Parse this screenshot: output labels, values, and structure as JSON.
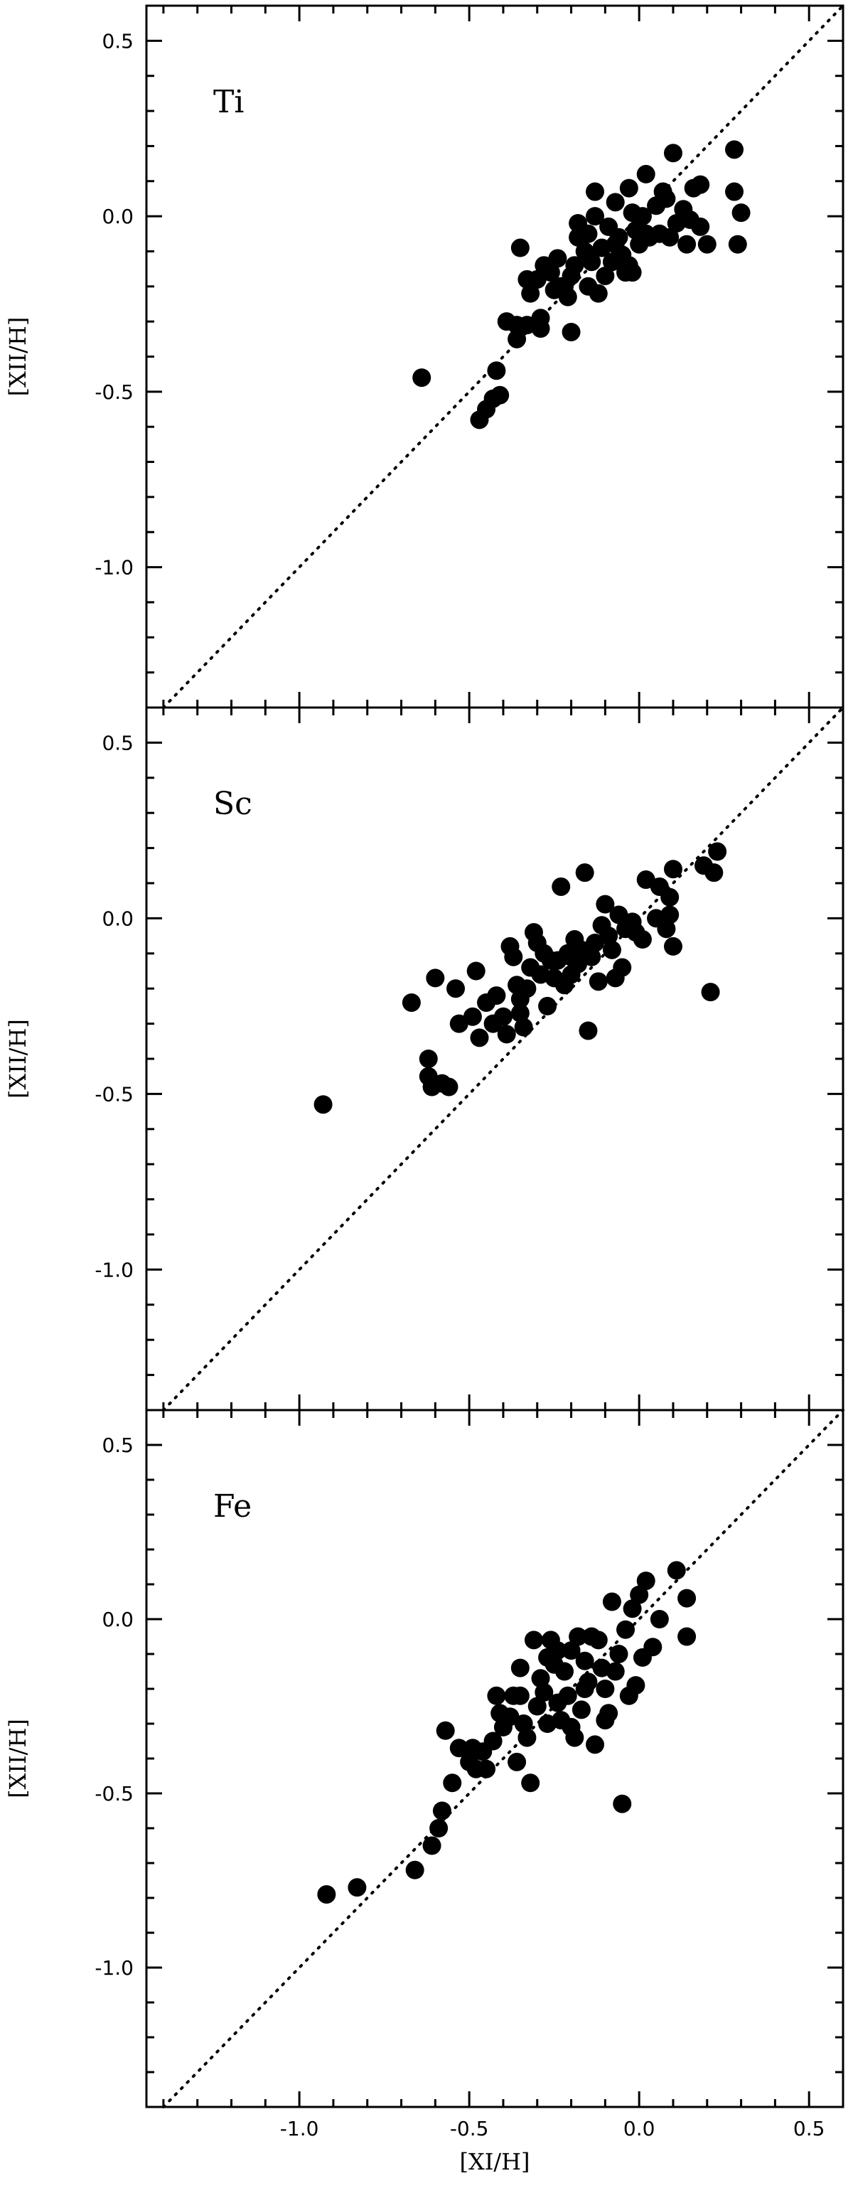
{
  "chart_data": [
    {
      "type": "scatter",
      "label": "Ti",
      "ylabel": "[XII/H]",
      "xlim": [
        -1.45,
        0.6
      ],
      "ylim": [
        -1.4,
        0.6
      ],
      "x_ticks": [
        "-1.0",
        "-0.5",
        "0.0",
        "0.5"
      ],
      "y_ticks": [
        "0.5",
        "0.0",
        "-0.5",
        "-1.0"
      ],
      "reference_line": "y = x (dotted)",
      "points": [
        [
          -0.64,
          -0.46
        ],
        [
          -0.47,
          -0.58
        ],
        [
          -0.45,
          -0.55
        ],
        [
          -0.43,
          -0.52
        ],
        [
          -0.41,
          -0.51
        ],
        [
          -0.42,
          -0.44
        ],
        [
          -0.39,
          -0.3
        ],
        [
          -0.36,
          -0.31
        ],
        [
          -0.36,
          -0.35
        ],
        [
          -0.33,
          -0.31
        ],
        [
          -0.35,
          -0.09
        ],
        [
          -0.33,
          -0.18
        ],
        [
          -0.32,
          -0.22
        ],
        [
          -0.29,
          -0.29
        ],
        [
          -0.29,
          -0.32
        ],
        [
          -0.3,
          -0.18
        ],
        [
          -0.28,
          -0.14
        ],
        [
          -0.26,
          -0.16
        ],
        [
          -0.25,
          -0.21
        ],
        [
          -0.24,
          -0.12
        ],
        [
          -0.22,
          -0.2
        ],
        [
          -0.21,
          -0.23
        ],
        [
          -0.2,
          -0.17
        ],
        [
          -0.2,
          -0.33
        ],
        [
          -0.19,
          -0.14
        ],
        [
          -0.18,
          -0.06
        ],
        [
          -0.18,
          -0.02
        ],
        [
          -0.16,
          -0.1
        ],
        [
          -0.15,
          -0.2
        ],
        [
          -0.14,
          -0.13
        ],
        [
          -0.13,
          0.07
        ],
        [
          -0.13,
          0.0
        ],
        [
          -0.12,
          -0.22
        ],
        [
          -0.11,
          -0.09
        ],
        [
          -0.1,
          -0.17
        ],
        [
          -0.09,
          -0.03
        ],
        [
          -0.08,
          -0.13
        ],
        [
          -0.07,
          0.04
        ],
        [
          -0.06,
          -0.06
        ],
        [
          -0.05,
          -0.11
        ],
        [
          -0.04,
          -0.16
        ],
        [
          -0.03,
          0.08
        ],
        [
          -0.02,
          0.01
        ],
        [
          -0.01,
          -0.04
        ],
        [
          0.0,
          -0.08
        ],
        [
          0.01,
          0.0
        ],
        [
          -0.03,
          -0.14
        ],
        [
          -0.02,
          -0.16
        ],
        [
          0.02,
          0.12
        ],
        [
          0.03,
          -0.06
        ],
        [
          0.05,
          0.03
        ],
        [
          0.06,
          -0.05
        ],
        [
          0.07,
          0.07
        ],
        [
          0.08,
          0.05
        ],
        [
          0.09,
          -0.06
        ],
        [
          0.1,
          0.18
        ],
        [
          0.11,
          -0.02
        ],
        [
          0.13,
          0.02
        ],
        [
          0.14,
          -0.08
        ],
        [
          0.15,
          -0.01
        ],
        [
          0.16,
          0.08
        ],
        [
          0.18,
          0.09
        ],
        [
          0.18,
          -0.03
        ],
        [
          0.2,
          -0.08
        ],
        [
          0.28,
          0.19
        ],
        [
          0.28,
          0.07
        ],
        [
          0.29,
          -0.08
        ],
        [
          0.3,
          0.01
        ],
        [
          -0.15,
          -0.05
        ],
        [
          -0.07,
          -0.08
        ],
        [
          -0.23,
          -0.2
        ],
        [
          0.02,
          -0.05
        ]
      ]
    },
    {
      "type": "scatter",
      "label": "Sc",
      "ylabel": "[XII/H]",
      "xlim": [
        -1.45,
        0.6
      ],
      "ylim": [
        -1.4,
        0.6
      ],
      "x_ticks": [
        "-1.0",
        "-0.5",
        "0.0",
        "0.5"
      ],
      "y_ticks": [
        "0.5",
        "0.0",
        "-0.5",
        "-1.0"
      ],
      "reference_line": "y = x (dotted)",
      "points": [
        [
          -0.93,
          -0.53
        ],
        [
          -0.67,
          -0.24
        ],
        [
          -0.62,
          -0.4
        ],
        [
          -0.62,
          -0.45
        ],
        [
          -0.61,
          -0.48
        ],
        [
          -0.58,
          -0.47
        ],
        [
          -0.56,
          -0.48
        ],
        [
          -0.6,
          -0.17
        ],
        [
          -0.54,
          -0.2
        ],
        [
          -0.53,
          -0.3
        ],
        [
          -0.49,
          -0.28
        ],
        [
          -0.48,
          -0.15
        ],
        [
          -0.47,
          -0.34
        ],
        [
          -0.45,
          -0.24
        ],
        [
          -0.43,
          -0.3
        ],
        [
          -0.42,
          -0.22
        ],
        [
          -0.4,
          -0.28
        ],
        [
          -0.39,
          -0.33
        ],
        [
          -0.38,
          -0.08
        ],
        [
          -0.37,
          -0.11
        ],
        [
          -0.36,
          -0.19
        ],
        [
          -0.35,
          -0.27
        ],
        [
          -0.34,
          -0.31
        ],
        [
          -0.33,
          -0.2
        ],
        [
          -0.32,
          -0.14
        ],
        [
          -0.31,
          -0.04
        ],
        [
          -0.3,
          -0.07
        ],
        [
          -0.29,
          -0.16
        ],
        [
          -0.28,
          -0.1
        ],
        [
          -0.27,
          -0.25
        ],
        [
          -0.26,
          -0.12
        ],
        [
          -0.25,
          -0.17
        ],
        [
          -0.24,
          -0.12
        ],
        [
          -0.23,
          0.09
        ],
        [
          -0.22,
          -0.19
        ],
        [
          -0.21,
          -0.1
        ],
        [
          -0.2,
          -0.16
        ],
        [
          -0.19,
          -0.06
        ],
        [
          -0.18,
          -0.13
        ],
        [
          -0.17,
          -0.09
        ],
        [
          -0.16,
          0.13
        ],
        [
          -0.15,
          -0.32
        ],
        [
          -0.14,
          -0.11
        ],
        [
          -0.13,
          -0.07
        ],
        [
          -0.12,
          -0.18
        ],
        [
          -0.11,
          -0.02
        ],
        [
          -0.1,
          0.04
        ],
        [
          -0.09,
          -0.05
        ],
        [
          -0.08,
          -0.09
        ],
        [
          -0.07,
          -0.17
        ],
        [
          -0.06,
          0.01
        ],
        [
          -0.05,
          -0.14
        ],
        [
          -0.04,
          -0.03
        ],
        [
          -0.02,
          -0.01
        ],
        [
          -0.01,
          -0.04
        ],
        [
          0.01,
          -0.06
        ],
        [
          0.02,
          0.11
        ],
        [
          0.05,
          0.0
        ],
        [
          0.06,
          0.09
        ],
        [
          0.08,
          -0.03
        ],
        [
          0.09,
          0.06
        ],
        [
          0.09,
          0.01
        ],
        [
          0.1,
          0.14
        ],
        [
          0.1,
          -0.08
        ],
        [
          0.19,
          0.15
        ],
        [
          0.22,
          0.13
        ],
        [
          0.23,
          0.19
        ],
        [
          0.21,
          -0.21
        ],
        [
          -0.35,
          -0.23
        ],
        [
          -0.2,
          -0.11
        ]
      ]
    },
    {
      "type": "scatter",
      "label": "Fe",
      "xlabel": "[XI/H]",
      "ylabel": "[XII/H]",
      "xlim": [
        -1.45,
        0.6
      ],
      "ylim": [
        -1.4,
        0.6
      ],
      "x_ticks": [
        "-1.0",
        "-0.5",
        "0.0",
        "0.5"
      ],
      "y_ticks": [
        "0.5",
        "0.0",
        "-0.5",
        "-1.0"
      ],
      "reference_line": "y = x (dotted)",
      "points": [
        [
          -0.92,
          -0.79
        ],
        [
          -0.83,
          -0.77
        ],
        [
          -0.66,
          -0.72
        ],
        [
          -0.61,
          -0.65
        ],
        [
          -0.59,
          -0.6
        ],
        [
          -0.58,
          -0.55
        ],
        [
          -0.55,
          -0.47
        ],
        [
          -0.57,
          -0.32
        ],
        [
          -0.53,
          -0.37
        ],
        [
          -0.5,
          -0.41
        ],
        [
          -0.49,
          -0.37
        ],
        [
          -0.48,
          -0.43
        ],
        [
          -0.46,
          -0.38
        ],
        [
          -0.45,
          -0.43
        ],
        [
          -0.43,
          -0.35
        ],
        [
          -0.42,
          -0.22
        ],
        [
          -0.41,
          -0.27
        ],
        [
          -0.4,
          -0.31
        ],
        [
          -0.38,
          -0.28
        ],
        [
          -0.37,
          -0.22
        ],
        [
          -0.36,
          -0.41
        ],
        [
          -0.35,
          -0.14
        ],
        [
          -0.34,
          -0.3
        ],
        [
          -0.33,
          -0.34
        ],
        [
          -0.32,
          -0.47
        ],
        [
          -0.31,
          -0.06
        ],
        [
          -0.3,
          -0.25
        ],
        [
          -0.29,
          -0.17
        ],
        [
          -0.28,
          -0.21
        ],
        [
          -0.27,
          -0.3
        ],
        [
          -0.26,
          -0.06
        ],
        [
          -0.25,
          -0.13
        ],
        [
          -0.24,
          -0.24
        ],
        [
          -0.23,
          -0.29
        ],
        [
          -0.22,
          -0.15
        ],
        [
          -0.21,
          -0.22
        ],
        [
          -0.2,
          -0.09
        ],
        [
          -0.19,
          -0.34
        ],
        [
          -0.18,
          -0.05
        ],
        [
          -0.17,
          -0.26
        ],
        [
          -0.16,
          -0.12
        ],
        [
          -0.15,
          -0.18
        ],
        [
          -0.14,
          -0.05
        ],
        [
          -0.13,
          -0.36
        ],
        [
          -0.12,
          -0.06
        ],
        [
          -0.11,
          -0.14
        ],
        [
          -0.1,
          -0.2
        ],
        [
          -0.09,
          -0.27
        ],
        [
          -0.08,
          0.05
        ],
        [
          -0.07,
          -0.15
        ],
        [
          -0.06,
          -0.1
        ],
        [
          -0.05,
          -0.53
        ],
        [
          -0.04,
          -0.03
        ],
        [
          -0.03,
          -0.22
        ],
        [
          -0.02,
          0.03
        ],
        [
          -0.01,
          -0.19
        ],
        [
          0.0,
          0.07
        ],
        [
          0.01,
          -0.11
        ],
        [
          0.02,
          0.11
        ],
        [
          0.04,
          -0.08
        ],
        [
          0.06,
          0.0
        ],
        [
          0.11,
          0.14
        ],
        [
          0.14,
          0.06
        ],
        [
          0.14,
          -0.05
        ],
        [
          -0.27,
          -0.11
        ],
        [
          -0.16,
          -0.2
        ],
        [
          -0.35,
          -0.22
        ],
        [
          -0.2,
          -0.31
        ],
        [
          -0.1,
          -0.29
        ],
        [
          -0.24,
          -0.09
        ]
      ]
    }
  ]
}
